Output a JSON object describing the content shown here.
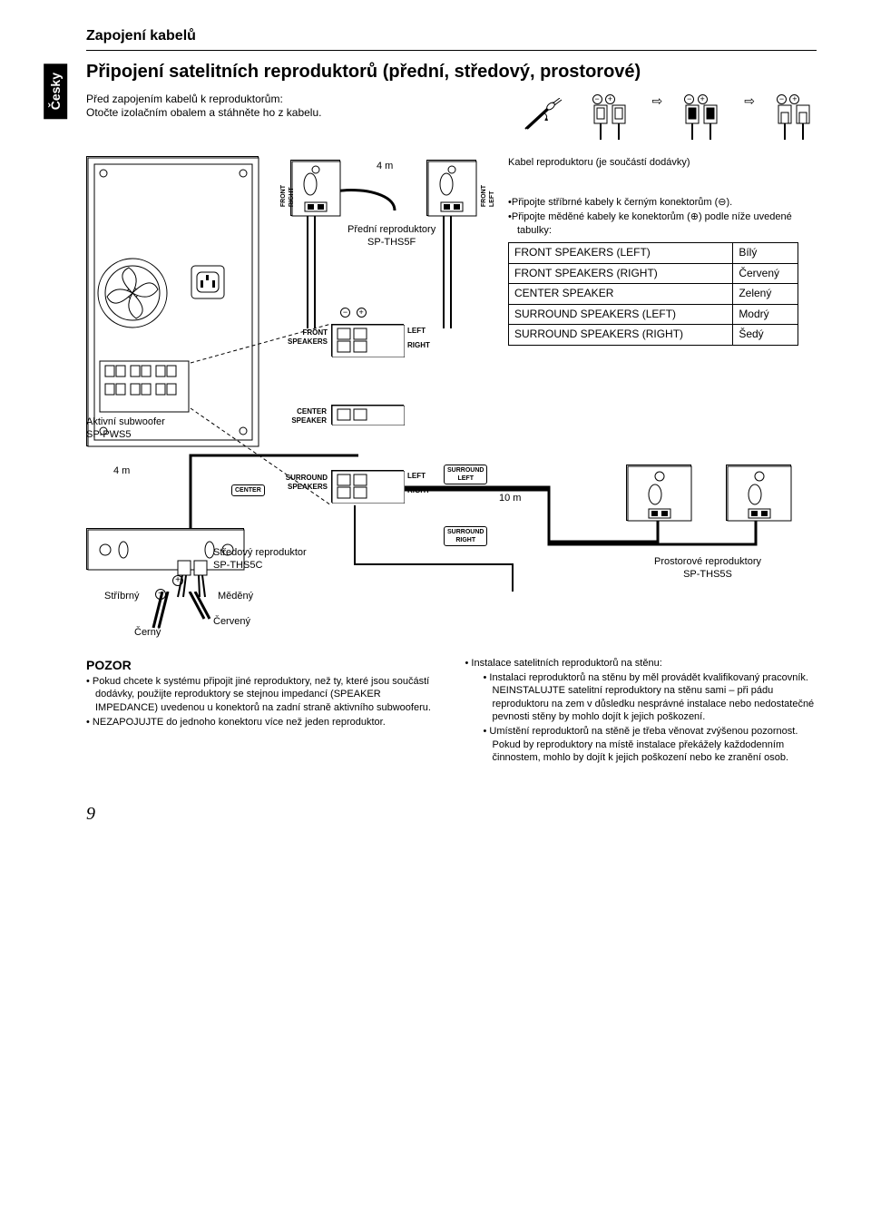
{
  "language_tab": "Česky",
  "header": {
    "section_title": "Zapojení kabelů"
  },
  "main_heading": "Připojení satelitních reproduktorů (přední, středový, prostorové)",
  "intro": {
    "line1": "Před zapojením kabelů k reproduktorům:",
    "line2": "Otočte izolačním obalem a stáhněte ho z kabelu."
  },
  "diagram": {
    "len_front": "4 m",
    "len_sub": "4 m",
    "len_surround": "10 m",
    "cable_note": "Kabel reproduktoru (je součástí dodávky)",
    "front_speakers_label": "Přední reproduktory\nSP-THS5F",
    "subwoofer_label": "Aktivní subwoofer\nSP-PWS5",
    "center_speaker_label": "Středový reproduktor\nSP-THS5C",
    "surround_speakers_label": "Prostorové reproduktory\nSP-THS5S",
    "wire_legend": {
      "silver": "Stříbrný",
      "copper": "Měděný",
      "black": "Černý",
      "red": "Červený"
    },
    "port_labels": {
      "front_right": "FRONT\nRIGHT",
      "front_left": "FRONT\nLEFT",
      "front_speakers": "FRONT\nSPEAKERS",
      "center_speaker": "CENTER\nSPEAKER",
      "surround_speakers": "SURROUND\nSPEAKERS",
      "surround_left": "SURROUND\nLEFT",
      "surround_right": "SURROUND\nRIGHT",
      "center": "CENTER",
      "left": "LEFT",
      "right": "RIGHT"
    },
    "connect_notes": {
      "n1": "•Připojte stříbrné kabely k černým konektorům (⊖).",
      "n2": "•Připojte měděné kabely ke konektorům (⊕) podle níže uvedené tabulky:"
    },
    "table": {
      "rows": [
        [
          "FRONT SPEAKERS (LEFT)",
          "Bílý"
        ],
        [
          "FRONT SPEAKERS (RIGHT)",
          "Červený"
        ],
        [
          "CENTER SPEAKER",
          "Zelený"
        ],
        [
          "SURROUND SPEAKERS (LEFT)",
          "Modrý"
        ],
        [
          "SURROUND SPEAKERS (RIGHT)",
          "Šedý"
        ]
      ]
    }
  },
  "pozor": {
    "heading": "POZOR",
    "left": [
      "Pokud chcete k systému připojit jiné reproduktory, než ty, které jsou součástí dodávky, použijte reproduktory se stejnou impedancí (SPEAKER IMPEDANCE) uvedenou u konektorů na zadní straně aktivního subwooferu.",
      "NEZAPOJUJTE do jednoho konektoru více než jeden reproduktor."
    ],
    "right_intro": "Instalace satelitních reproduktorů na stěnu:",
    "right": [
      "Instalaci reproduktorů na stěnu by měl provádět kvalifikovaný pracovník. NEINSTALUJTE satelitní reproduktory na stěnu sami – při pádu reproduktoru na zem v důsledku nesprávné instalace nebo nedostatečné pevnosti stěny by mohlo dojít k jejich poškození.",
      "Umístění reproduktorů na stěně je třeba věnovat zvýšenou pozornost. Pokud by reproduktory na místě instalace překážely každodenním činnostem, mohlo by dojít k jejich poškození nebo ke zranění osob."
    ]
  },
  "page_number": "9",
  "colors": {
    "black": "#000000",
    "white": "#ffffff"
  }
}
